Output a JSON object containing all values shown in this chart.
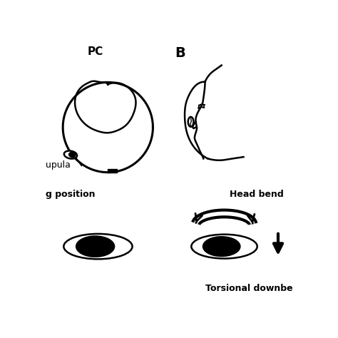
{
  "bg_color": "#ffffff",
  "label_PC": "PC",
  "label_B": "B",
  "label_cupula": "upula",
  "label_position": "g position",
  "label_head_bend": "Head bend",
  "label_torsional": "Torsional downbe",
  "bold_fontsize": 11,
  "label_fontsize": 9
}
